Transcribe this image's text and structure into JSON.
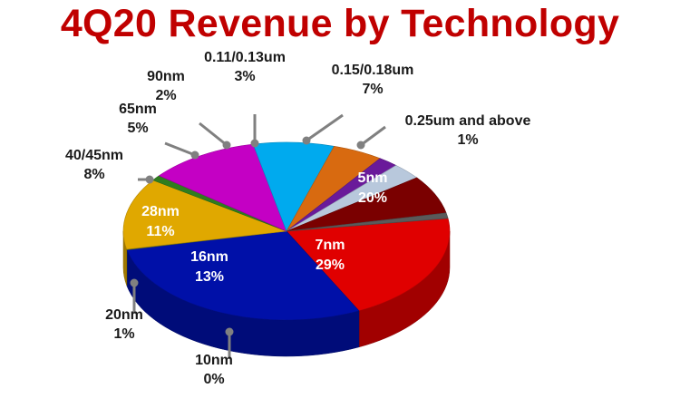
{
  "chart_data": {
    "type": "pie",
    "title": "4Q20 Revenue by Technology",
    "slices": [
      {
        "label": "5nm",
        "value_label": "20%",
        "value": 20,
        "color": "#e00000"
      },
      {
        "label": "7nm",
        "value_label": "29%",
        "value": 29,
        "color": "#0010a8"
      },
      {
        "label": "10nm",
        "value_label": "0%",
        "value": 0,
        "color": "#5a7d2a"
      },
      {
        "label": "16nm",
        "value_label": "13%",
        "value": 13,
        "color": "#e0a800"
      },
      {
        "label": "20nm",
        "value_label": "1%",
        "value": 1,
        "color": "#2f7d1f"
      },
      {
        "label": "28nm",
        "value_label": "11%",
        "value": 11,
        "color": "#c400c4"
      },
      {
        "label": "40/45nm",
        "value_label": "8%",
        "value": 8,
        "color": "#00aaee"
      },
      {
        "label": "65nm",
        "value_label": "5%",
        "value": 5,
        "color": "#d86a10"
      },
      {
        "label": "90nm",
        "value_label": "2%",
        "value": 2,
        "color": "#6a1a9a"
      },
      {
        "label": "0.11/0.13um",
        "value_label": "3%",
        "value": 3,
        "color": "#b8c8dc"
      },
      {
        "label": "0.15/0.18um",
        "value_label": "7%",
        "value": 7,
        "color": "#7a0000"
      },
      {
        "label": "0.25um and above",
        "value_label": "1%",
        "value": 1,
        "color": "#5a5a5a"
      }
    ]
  }
}
